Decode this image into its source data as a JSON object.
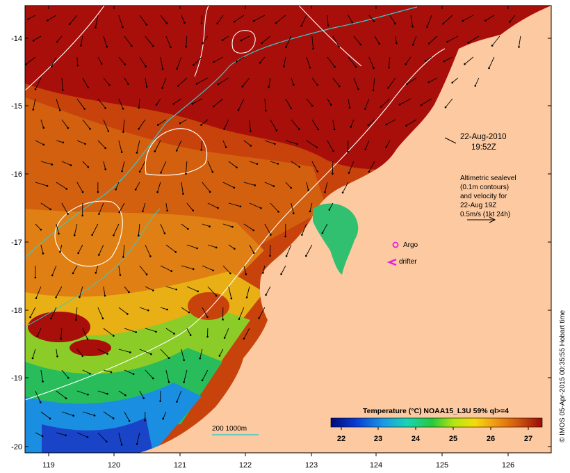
{
  "map": {
    "date_line1": "22-Aug-2010",
    "date_line2": "19:52Z",
    "altimetry_note": [
      "Altimetric sealevel",
      "(0.1m contours)",
      "and velocity for",
      "22-Aug 19Z",
      "0.5m/s (1kt 24h)"
    ],
    "legend": {
      "argo": "Argo",
      "drifter": "drifter",
      "isobaths": "200  1000m"
    },
    "colorbar": {
      "title": "Temperature (°C) NOAA15_L3U 59% ql>=4",
      "ticks": [
        "22",
        "23",
        "24",
        "25",
        "26",
        "27"
      ]
    },
    "lon_ticks": [
      "119",
      "120",
      "121",
      "122",
      "123",
      "124",
      "125",
      "126"
    ],
    "lat_ticks": [
      "-14",
      "-15",
      "-16",
      "-17",
      "-18",
      "-19",
      "-20"
    ],
    "credit": "© IMOS 05-Apr-2015 00:35:55 Hobart time",
    "colors": {
      "land": "#fcc9a0",
      "sst_warm": "#a80f0a",
      "sst_cool": "#1a5ad6",
      "argo": "#e020e0",
      "contour": "#ffffff",
      "isobath": "#3cc8c8"
    }
  }
}
